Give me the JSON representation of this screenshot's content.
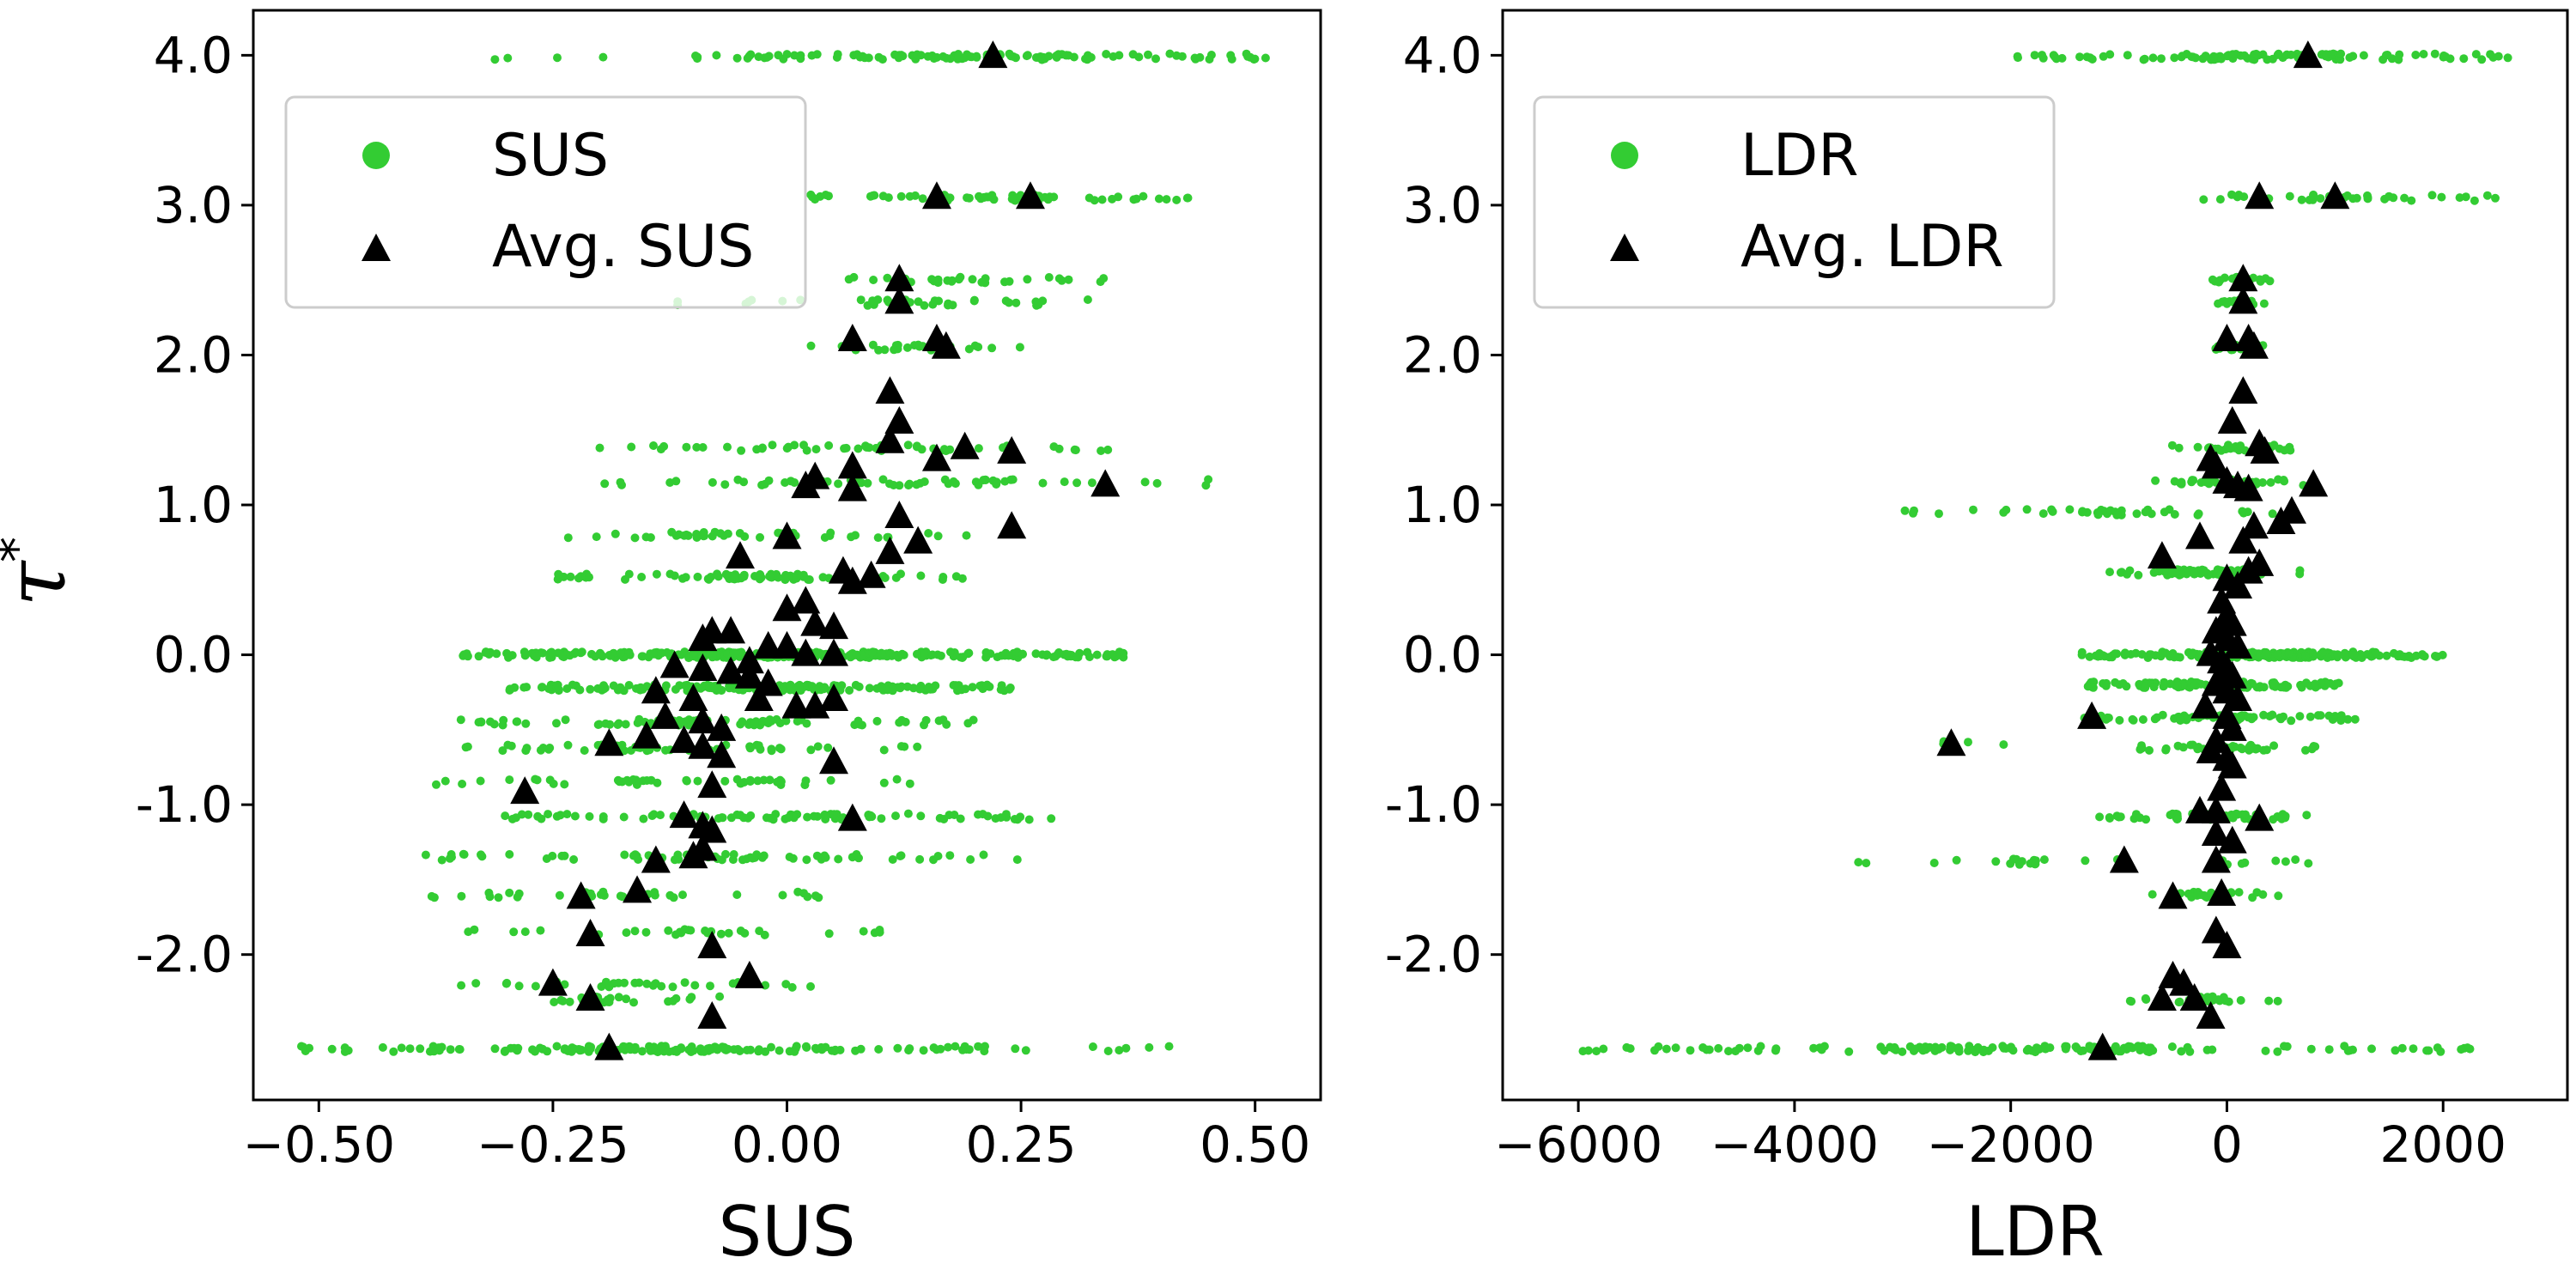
{
  "figure": {
    "ylabel": "τ",
    "ylabel_superscript": "*",
    "colors": {
      "scatter": "#33cc33",
      "average": "#000000"
    }
  },
  "chart_data": [
    {
      "type": "scatter",
      "xlabel": "SUS",
      "ylabel": "τ*",
      "xlim": [
        -0.57,
        0.57
      ],
      "ylim": [
        -2.97,
        4.3
      ],
      "xticks": [
        -0.5,
        -0.25,
        0.0,
        0.25,
        0.5
      ],
      "xtick_labels": [
        "−0.50",
        "−0.25",
        "0.00",
        "0.25",
        "0.50"
      ],
      "yticks": [
        -2.0,
        -1.0,
        0.0,
        1.0,
        2.0,
        3.0,
        4.0
      ],
      "ytick_labels": [
        "-2.0",
        "-1.0",
        "0.0",
        "1.0",
        "2.0",
        "3.0",
        "4.0"
      ],
      "legend": {
        "placement": "upper-left",
        "entries": [
          "SUS",
          "Avg. SUS"
        ]
      },
      "grid": false,
      "series": [
        {
          "name": "SUS",
          "marker": "dot",
          "clusters": [
            {
              "x0": -0.1,
              "x1": 0.52,
              "y": 3.99,
              "n": 120
            },
            {
              "x0": -0.45,
              "x1": -0.15,
              "y": 3.99,
              "n": 4
            },
            {
              "x0": 0.02,
              "x1": 0.43,
              "y": 3.05,
              "n": 60
            },
            {
              "x0": 0.05,
              "x1": 0.34,
              "y": 2.5,
              "n": 30
            },
            {
              "x0": -0.13,
              "x1": 0.34,
              "y": 2.35,
              "n": 35
            },
            {
              "x0": 0.02,
              "x1": 0.27,
              "y": 2.05,
              "n": 30
            },
            {
              "x0": -0.2,
              "x1": 0.37,
              "y": 1.38,
              "n": 50
            },
            {
              "x0": -0.2,
              "x1": 0.46,
              "y": 1.15,
              "n": 55
            },
            {
              "x0": -0.3,
              "x1": 0.2,
              "y": 0.8,
              "n": 40
            },
            {
              "x0": -0.25,
              "x1": 0.2,
              "y": 0.52,
              "n": 80
            },
            {
              "x0": -0.35,
              "x1": 0.36,
              "y": 0.0,
              "n": 320
            },
            {
              "x0": -0.3,
              "x1": 0.25,
              "y": -0.22,
              "n": 200
            },
            {
              "x0": -0.35,
              "x1": 0.2,
              "y": -0.45,
              "n": 90
            },
            {
              "x0": -0.35,
              "x1": 0.15,
              "y": -0.62,
              "n": 60
            },
            {
              "x0": -0.38,
              "x1": 0.2,
              "y": -0.85,
              "n": 45
            },
            {
              "x0": -0.33,
              "x1": 0.31,
              "y": -1.08,
              "n": 90
            },
            {
              "x0": -0.4,
              "x1": 0.25,
              "y": -1.35,
              "n": 70
            },
            {
              "x0": -0.38,
              "x1": 0.05,
              "y": -1.6,
              "n": 40
            },
            {
              "x0": -0.35,
              "x1": 0.1,
              "y": -1.85,
              "n": 30
            },
            {
              "x0": -0.35,
              "x1": 0.05,
              "y": -2.2,
              "n": 30
            },
            {
              "x0": -0.35,
              "x1": -0.05,
              "y": -2.3,
              "n": 25
            },
            {
              "x0": -0.52,
              "x1": 0.22,
              "y": -2.63,
              "n": 160
            },
            {
              "x0": 0.24,
              "x1": 0.43,
              "y": -2.63,
              "n": 8
            }
          ]
        },
        {
          "name": "Avg. SUS",
          "marker": "triangle",
          "points": [
            [
              0.22,
              3.99
            ],
            [
              0.16,
              3.05
            ],
            [
              0.26,
              3.05
            ],
            [
              0.12,
              2.5
            ],
            [
              0.12,
              2.35
            ],
            [
              0.07,
              2.1
            ],
            [
              0.16,
              2.1
            ],
            [
              0.17,
              2.05
            ],
            [
              0.11,
              1.75
            ],
            [
              0.12,
              1.55
            ],
            [
              0.11,
              1.42
            ],
            [
              0.19,
              1.38
            ],
            [
              0.24,
              1.35
            ],
            [
              0.16,
              1.3
            ],
            [
              0.07,
              1.25
            ],
            [
              0.03,
              1.18
            ],
            [
              0.02,
              1.12
            ],
            [
              0.07,
              1.1
            ],
            [
              0.34,
              1.13
            ],
            [
              0.12,
              0.92
            ],
            [
              0.24,
              0.85
            ],
            [
              0.0,
              0.78
            ],
            [
              0.14,
              0.75
            ],
            [
              0.11,
              0.68
            ],
            [
              -0.05,
              0.65
            ],
            [
              0.06,
              0.55
            ],
            [
              0.09,
              0.52
            ],
            [
              0.07,
              0.48
            ],
            [
              0.02,
              0.35
            ],
            [
              0.0,
              0.3
            ],
            [
              -0.08,
              0.15
            ],
            [
              -0.06,
              0.15
            ],
            [
              0.03,
              0.2
            ],
            [
              0.05,
              0.18
            ],
            [
              -0.09,
              0.1
            ],
            [
              -0.02,
              0.05
            ],
            [
              0.0,
              0.05
            ],
            [
              0.02,
              0.0
            ],
            [
              0.05,
              0.0
            ],
            [
              -0.04,
              -0.05
            ],
            [
              -0.12,
              -0.08
            ],
            [
              -0.09,
              -0.1
            ],
            [
              -0.06,
              -0.12
            ],
            [
              -0.04,
              -0.15
            ],
            [
              -0.02,
              -0.2
            ],
            [
              -0.14,
              -0.25
            ],
            [
              -0.1,
              -0.3
            ],
            [
              -0.03,
              -0.3
            ],
            [
              0.01,
              -0.35
            ],
            [
              0.03,
              -0.35
            ],
            [
              0.05,
              -0.3
            ],
            [
              -0.13,
              -0.42
            ],
            [
              -0.09,
              -0.45
            ],
            [
              -0.07,
              -0.5
            ],
            [
              -0.15,
              -0.55
            ],
            [
              -0.11,
              -0.58
            ],
            [
              -0.19,
              -0.6
            ],
            [
              -0.09,
              -0.62
            ],
            [
              -0.07,
              -0.68
            ],
            [
              0.05,
              -0.72
            ],
            [
              -0.08,
              -0.88
            ],
            [
              -0.28,
              -0.92
            ],
            [
              -0.11,
              -1.08
            ],
            [
              -0.09,
              -1.15
            ],
            [
              -0.08,
              -1.18
            ],
            [
              0.07,
              -1.1
            ],
            [
              -0.14,
              -1.38
            ],
            [
              -0.1,
              -1.35
            ],
            [
              -0.09,
              -1.3
            ],
            [
              -0.16,
              -1.58
            ],
            [
              -0.22,
              -1.62
            ],
            [
              -0.21,
              -1.87
            ],
            [
              -0.08,
              -1.95
            ],
            [
              -0.25,
              -2.2
            ],
            [
              -0.21,
              -2.3
            ],
            [
              -0.04,
              -2.15
            ],
            [
              -0.08,
              -2.42
            ],
            [
              -0.19,
              -2.63
            ]
          ]
        }
      ]
    },
    {
      "type": "scatter",
      "xlabel": "LDR",
      "xlim": [
        -6700,
        3150
      ],
      "ylim": [
        -2.97,
        4.3
      ],
      "xticks": [
        -6000,
        -4000,
        -2000,
        0,
        2000
      ],
      "xtick_labels": [
        "−6000",
        "−4000",
        "−2000",
        "0",
        "2000"
      ],
      "yticks": [
        -2.0,
        -1.0,
        0.0,
        1.0,
        2.0,
        3.0,
        4.0
      ],
      "ytick_labels": [
        "-2.0",
        "-1.0",
        "0.0",
        "1.0",
        "2.0",
        "3.0",
        "4.0"
      ],
      "legend": {
        "placement": "upper-left",
        "entries": [
          "LDR",
          "Avg. LDR"
        ]
      },
      "grid": false,
      "series": [
        {
          "name": "LDR",
          "marker": "dot",
          "clusters": [
            {
              "x0": -2000,
              "x1": 2750,
              "y": 3.99,
              "n": 110
            },
            {
              "x0": -300,
              "x1": 2650,
              "y": 3.05,
              "n": 40
            },
            {
              "x0": -150,
              "x1": 400,
              "y": 2.5,
              "n": 20
            },
            {
              "x0": -150,
              "x1": 400,
              "y": 2.35,
              "n": 20
            },
            {
              "x0": -150,
              "x1": 400,
              "y": 2.05,
              "n": 20
            },
            {
              "x0": -600,
              "x1": 600,
              "y": 1.38,
              "n": 30
            },
            {
              "x0": -700,
              "x1": 800,
              "y": 1.15,
              "n": 35
            },
            {
              "x0": -3300,
              "x1": 1100,
              "y": 0.95,
              "n": 40
            },
            {
              "x0": -1200,
              "x1": 700,
              "y": 0.55,
              "n": 60
            },
            {
              "x0": -1400,
              "x1": 2000,
              "y": 0.0,
              "n": 200
            },
            {
              "x0": -1300,
              "x1": 1100,
              "y": -0.2,
              "n": 120
            },
            {
              "x0": -1400,
              "x1": 1200,
              "y": -0.42,
              "n": 60
            },
            {
              "x0": -3300,
              "x1": -1900,
              "y": -0.58,
              "n": 4
            },
            {
              "x0": -1000,
              "x1": 900,
              "y": -0.62,
              "n": 40
            },
            {
              "x0": -1200,
              "x1": 800,
              "y": -1.08,
              "n": 60
            },
            {
              "x0": -3500,
              "x1": 800,
              "y": -1.38,
              "n": 30
            },
            {
              "x0": -700,
              "x1": 500,
              "y": -1.6,
              "n": 25
            },
            {
              "x0": -900,
              "x1": 500,
              "y": -2.3,
              "n": 30
            },
            {
              "x0": -6000,
              "x1": 2300,
              "y": -2.63,
              "n": 150
            }
          ]
        },
        {
          "name": "Avg. LDR",
          "marker": "triangle",
          "points": [
            [
              750,
              3.99
            ],
            [
              300,
              3.05
            ],
            [
              1000,
              3.05
            ],
            [
              150,
              2.5
            ],
            [
              150,
              2.35
            ],
            [
              200,
              2.1
            ],
            [
              250,
              2.05
            ],
            [
              0,
              2.1
            ],
            [
              150,
              1.75
            ],
            [
              50,
              1.55
            ],
            [
              300,
              1.4
            ],
            [
              350,
              1.35
            ],
            [
              -150,
              1.3
            ],
            [
              -100,
              1.25
            ],
            [
              0,
              1.15
            ],
            [
              100,
              1.12
            ],
            [
              200,
              1.1
            ],
            [
              800,
              1.13
            ],
            [
              600,
              0.95
            ],
            [
              500,
              0.88
            ],
            [
              -250,
              0.78
            ],
            [
              150,
              0.75
            ],
            [
              250,
              0.85
            ],
            [
              -600,
              0.65
            ],
            [
              300,
              0.6
            ],
            [
              0,
              0.5
            ],
            [
              100,
              0.45
            ],
            [
              200,
              0.55
            ],
            [
              -50,
              0.35
            ],
            [
              0,
              0.25
            ],
            [
              50,
              0.2
            ],
            [
              -100,
              0.15
            ],
            [
              0,
              0.1
            ],
            [
              100,
              0.05
            ],
            [
              -150,
              0.0
            ],
            [
              -50,
              -0.05
            ],
            [
              0,
              -0.1
            ],
            [
              50,
              -0.15
            ],
            [
              -100,
              -0.2
            ],
            [
              0,
              -0.25
            ],
            [
              100,
              -0.3
            ],
            [
              -200,
              -0.35
            ],
            [
              0,
              -0.42
            ],
            [
              -1250,
              -0.42
            ],
            [
              50,
              -0.5
            ],
            [
              -100,
              -0.58
            ],
            [
              -2550,
              -0.6
            ],
            [
              -150,
              -0.65
            ],
            [
              0,
              -0.7
            ],
            [
              50,
              -0.75
            ],
            [
              -50,
              -0.9
            ],
            [
              -100,
              -1.05
            ],
            [
              -250,
              -1.05
            ],
            [
              300,
              -1.1
            ],
            [
              -100,
              -1.2
            ],
            [
              50,
              -1.25
            ],
            [
              -950,
              -1.38
            ],
            [
              -100,
              -1.38
            ],
            [
              -50,
              -1.6
            ],
            [
              -500,
              -1.62
            ],
            [
              -100,
              -1.85
            ],
            [
              0,
              -1.95
            ],
            [
              -500,
              -2.15
            ],
            [
              -400,
              -2.2
            ],
            [
              -600,
              -2.3
            ],
            [
              -300,
              -2.3
            ],
            [
              -150,
              -2.42
            ],
            [
              -1150,
              -2.63
            ]
          ]
        }
      ]
    }
  ]
}
